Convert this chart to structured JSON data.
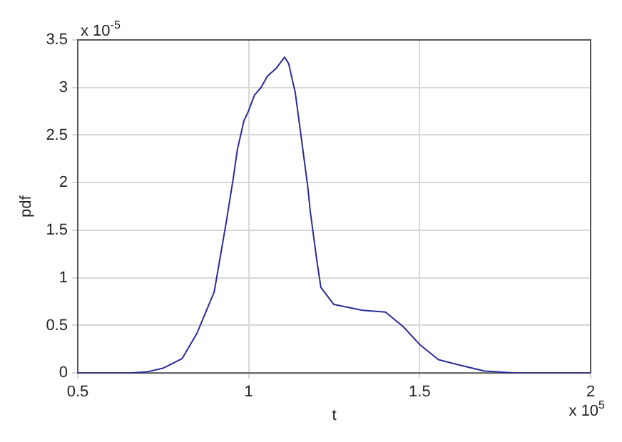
{
  "chart_data": {
    "type": "line",
    "xlabel": "t",
    "ylabel": "pdf",
    "annotations": [
      "x 10$^{-5}$",
      "x 10$^{5}$"
    ],
    "series": [
      {
        "color": "#2b2b9a",
        "x": [
          0.5,
          0.65,
          0.7,
          0.749,
          0.805,
          0.849,
          0.899,
          0.936,
          0.955,
          0.967,
          0.986,
          0.999,
          1.017,
          1.036,
          1.055,
          1.08,
          1.105,
          1.117,
          1.136,
          1.155,
          1.173,
          1.18,
          1.199,
          1.211,
          1.23,
          1.249,
          1.33,
          1.4,
          1.451,
          1.5,
          1.555,
          1.62,
          1.69,
          1.78,
          2.0
        ],
        "values": [
          0,
          0,
          0.01,
          0.05,
          0.15,
          0.42,
          0.85,
          1.62,
          2.05,
          2.35,
          2.65,
          2.75,
          2.92,
          3.0,
          3.12,
          3.2,
          3.32,
          3.25,
          2.95,
          2.44,
          1.95,
          1.7,
          1.19,
          0.9,
          0.81,
          0.72,
          0.66,
          0.64,
          0.49,
          0.3,
          0.14,
          0.08,
          0.02,
          0,
          0
        ]
      }
    ],
    "xlim": [
      0.5,
      2
    ],
    "xticks": [
      0.5,
      1,
      1.5,
      2
    ],
    "ylim": [
      0,
      3.5
    ],
    "yticks": [
      0,
      0.5,
      1,
      1.5,
      2,
      2.5,
      3,
      3.5
    ],
    "grid": true,
    "legend": false,
    "marker": "none",
    "line_style": "solid"
  }
}
